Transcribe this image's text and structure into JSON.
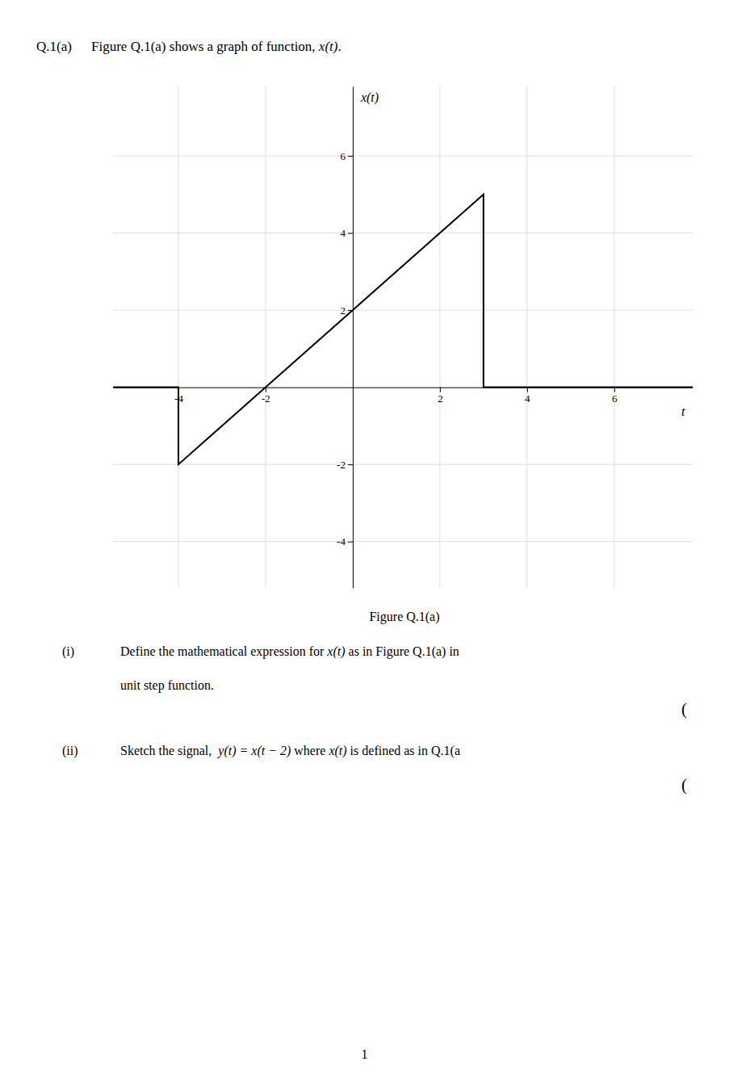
{
  "chart_data": {
    "type": "line",
    "title": "Figure Q.1(a)",
    "x_label": "t",
    "y_label": "x(t)",
    "x": [
      -5.5,
      -4,
      -4,
      3,
      3,
      7.8
    ],
    "values": [
      0,
      0,
      -2,
      5,
      0,
      0
    ],
    "color": "#000000",
    "xlim": [
      -5.5,
      7.8
    ],
    "ylim": [
      -5.2,
      7.8
    ],
    "xticks": [
      -4,
      -2,
      2,
      4,
      6
    ],
    "yticks": [
      -4,
      -2,
      2,
      4,
      6
    ],
    "grid": true,
    "annotations": [
      [
        "Q.1(a)",
        "Figure Q.1(a) shows a graph of function, ",
        "x(t)",
        "."
      ],
      [
        "(i)",
        "Define the mathematical expression for ",
        "x(t)",
        " as in Figure Q.1(a) in"
      ],
      [
        "unit step function."
      ],
      [
        "("
      ],
      [
        "(ii)",
        "Sketch the signal,  ",
        "y(t) = x(t − 2)",
        " where ",
        "x(t)",
        " is defined as in Q.1(a"
      ],
      [
        "("
      ],
      [
        "1"
      ]
    ]
  }
}
